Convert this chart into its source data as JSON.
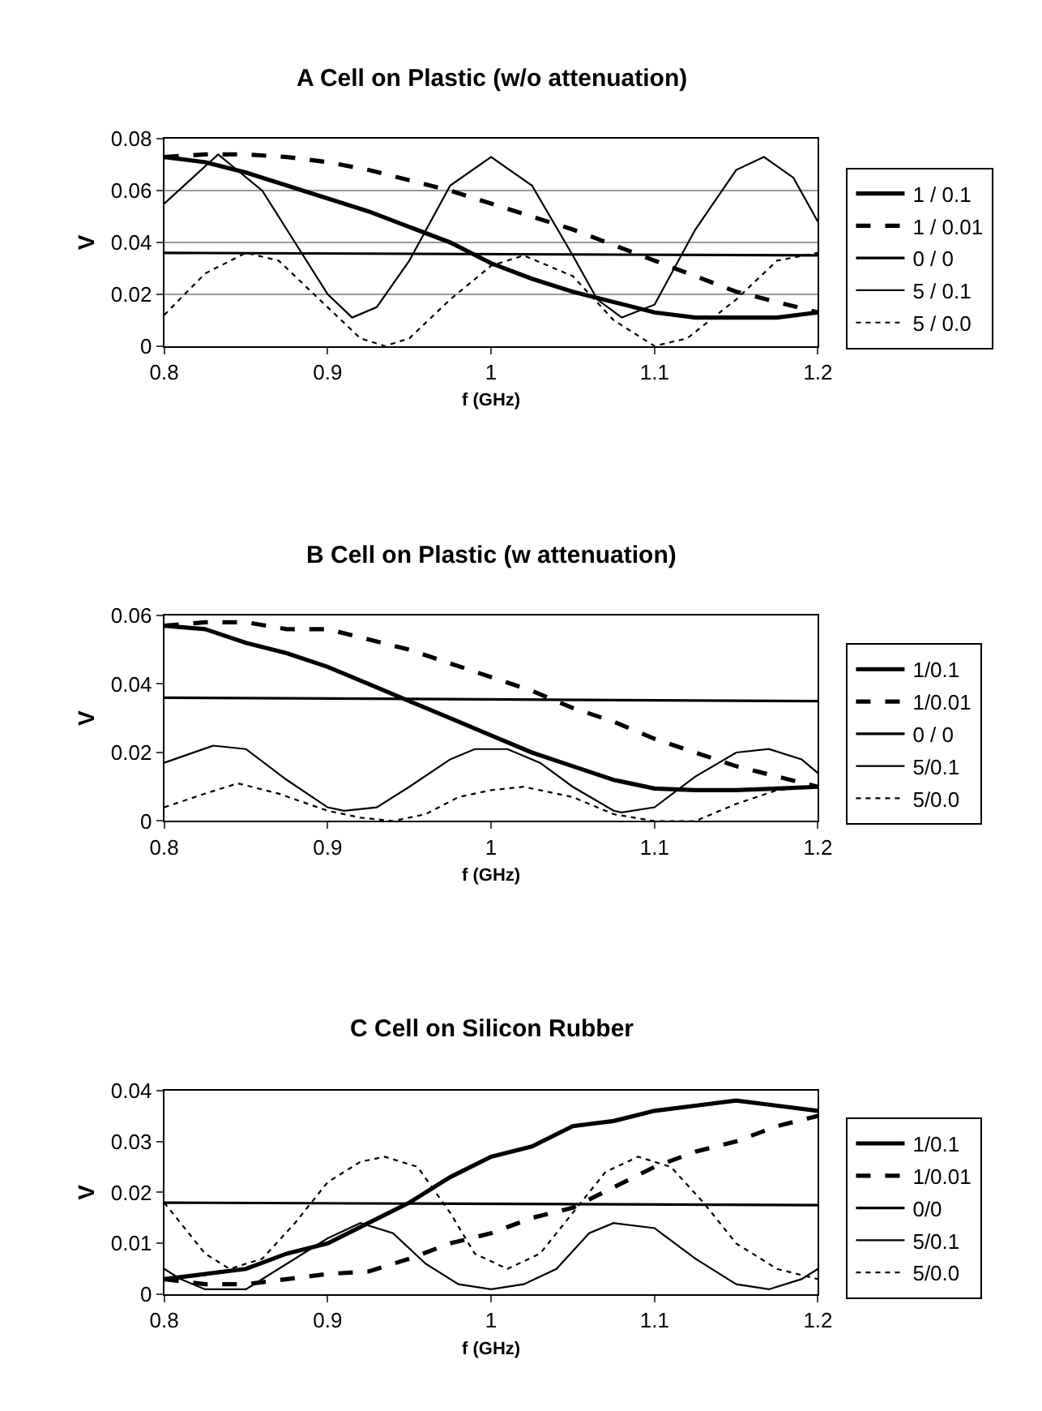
{
  "chart_data": [
    {
      "type": "line",
      "title": "A Cell on Plastic (w/o attenuation)",
      "xlabel": "f (GHz)",
      "ylabel": "V",
      "xlim": [
        0.8,
        1.2
      ],
      "xticks": [
        0.8,
        0.9,
        1,
        1.1,
        1.2
      ],
      "ylim": [
        0,
        0.08
      ],
      "yticks": [
        0,
        0.02,
        0.04,
        0.06,
        0.08
      ],
      "grid": "y",
      "legend": "right",
      "series": [
        {
          "name": "1 / 0.1",
          "color": "#000000",
          "line_style": "solid",
          "x": [
            0.8,
            0.825,
            0.85,
            0.875,
            0.9,
            0.925,
            0.95,
            0.975,
            1.0,
            1.025,
            1.05,
            1.075,
            1.1,
            1.125,
            1.15,
            1.175,
            1.2
          ],
          "values": [
            0.073,
            0.071,
            0.067,
            0.062,
            0.057,
            0.052,
            0.046,
            0.04,
            0.032,
            0.026,
            0.021,
            0.017,
            0.013,
            0.011,
            0.011,
            0.011,
            0.013
          ]
        },
        {
          "name": "1 / 0.01",
          "color": "#000000",
          "line_style": "dashed",
          "x": [
            0.8,
            0.825,
            0.85,
            0.875,
            0.9,
            0.925,
            0.95,
            0.975,
            1.0,
            1.025,
            1.05,
            1.075,
            1.1,
            1.125,
            1.15,
            1.175,
            1.2
          ],
          "values": [
            0.073,
            0.074,
            0.074,
            0.073,
            0.071,
            0.068,
            0.064,
            0.06,
            0.055,
            0.05,
            0.045,
            0.039,
            0.033,
            0.027,
            0.021,
            0.017,
            0.013
          ]
        },
        {
          "name": "0 / 0",
          "color": "#000000",
          "line_style": "solid",
          "x": [
            0.8,
            1.2
          ],
          "values": [
            0.036,
            0.035
          ]
        },
        {
          "name": "5 / 0.1",
          "color": "#000000",
          "line_style": "solid",
          "x": [
            0.8,
            0.833,
            0.86,
            0.875,
            0.9,
            0.915,
            0.93,
            0.95,
            0.975,
            1.0,
            1.025,
            1.05,
            1.065,
            1.08,
            1.1,
            1.125,
            1.15,
            1.167,
            1.185,
            1.2
          ],
          "values": [
            0.055,
            0.074,
            0.06,
            0.045,
            0.02,
            0.011,
            0.015,
            0.033,
            0.062,
            0.073,
            0.062,
            0.035,
            0.018,
            0.011,
            0.016,
            0.045,
            0.068,
            0.073,
            0.065,
            0.048
          ]
        },
        {
          "name": "5 / 0.0",
          "color": "#000000",
          "line_style": "dotted",
          "x": [
            0.8,
            0.825,
            0.85,
            0.87,
            0.9,
            0.92,
            0.935,
            0.95,
            0.975,
            1.0,
            1.02,
            1.05,
            1.075,
            1.1,
            1.12,
            1.15,
            1.175,
            1.2
          ],
          "values": [
            0.012,
            0.028,
            0.036,
            0.033,
            0.015,
            0.003,
            0,
            0.003,
            0.018,
            0.031,
            0.035,
            0.027,
            0.01,
            0,
            0.003,
            0.018,
            0.033,
            0.036
          ]
        }
      ]
    },
    {
      "type": "line",
      "title": "B Cell on Plastic (w attenuation)",
      "xlabel": "f (GHz)",
      "ylabel": "V",
      "xlim": [
        0.8,
        1.2
      ],
      "xticks": [
        0.8,
        0.9,
        1,
        1.1,
        1.2
      ],
      "ylim": [
        0,
        0.06
      ],
      "yticks": [
        0,
        0.02,
        0.04,
        0.06
      ],
      "grid": false,
      "legend": "right",
      "series": [
        {
          "name": "1/0.1",
          "color": "#000000",
          "line_style": "solid",
          "x": [
            0.8,
            0.825,
            0.85,
            0.875,
            0.9,
            0.925,
            0.95,
            0.975,
            1.0,
            1.025,
            1.05,
            1.075,
            1.1,
            1.125,
            1.15,
            1.175,
            1.2
          ],
          "values": [
            0.057,
            0.056,
            0.052,
            0.049,
            0.045,
            0.04,
            0.035,
            0.03,
            0.025,
            0.02,
            0.016,
            0.012,
            0.0095,
            0.009,
            0.009,
            0.0095,
            0.01
          ]
        },
        {
          "name": "1/0.01",
          "color": "#000000",
          "line_style": "dashed",
          "x": [
            0.8,
            0.825,
            0.85,
            0.875,
            0.9,
            0.925,
            0.95,
            0.975,
            1.0,
            1.025,
            1.05,
            1.075,
            1.1,
            1.125,
            1.15,
            1.175,
            1.2
          ],
          "values": [
            0.057,
            0.058,
            0.058,
            0.056,
            0.056,
            0.053,
            0.05,
            0.046,
            0.042,
            0.038,
            0.033,
            0.029,
            0.024,
            0.02,
            0.016,
            0.013,
            0.01
          ]
        },
        {
          "name": "0 / 0",
          "color": "#000000",
          "line_style": "solid",
          "x": [
            0.8,
            1.2
          ],
          "values": [
            0.036,
            0.035
          ]
        },
        {
          "name": "5/0.1",
          "color": "#000000",
          "line_style": "solid",
          "x": [
            0.8,
            0.83,
            0.85,
            0.875,
            0.9,
            0.91,
            0.93,
            0.95,
            0.975,
            0.99,
            1.01,
            1.03,
            1.05,
            1.075,
            1.08,
            1.1,
            1.125,
            1.15,
            1.17,
            1.19,
            1.2
          ],
          "values": [
            0.017,
            0.022,
            0.021,
            0.012,
            0.004,
            0.003,
            0.004,
            0.01,
            0.018,
            0.021,
            0.021,
            0.017,
            0.01,
            0.003,
            0.0025,
            0.004,
            0.013,
            0.02,
            0.021,
            0.018,
            0.014
          ]
        },
        {
          "name": "5/0.0",
          "color": "#000000",
          "line_style": "dotted",
          "x": [
            0.8,
            0.825,
            0.845,
            0.87,
            0.9,
            0.92,
            0.94,
            0.96,
            0.98,
            1.0,
            1.02,
            1.05,
            1.075,
            1.1,
            1.125,
            1.15,
            1.175,
            1.2
          ],
          "values": [
            0.004,
            0.008,
            0.011,
            0.008,
            0.003,
            0.001,
            0,
            0.002,
            0.007,
            0.009,
            0.01,
            0.007,
            0.002,
            0,
            0,
            0.005,
            0.009,
            0.01
          ]
        }
      ]
    },
    {
      "type": "line",
      "title": "C Cell on Silicon Rubber",
      "xlabel": "f (GHz)",
      "ylabel": "V",
      "xlim": [
        0.8,
        1.2
      ],
      "xticks": [
        0.8,
        0.9,
        1,
        1.1,
        1.2
      ],
      "ylim": [
        0,
        0.04
      ],
      "yticks": [
        0,
        0.01,
        0.02,
        0.03,
        0.04
      ],
      "grid": false,
      "legend": "right",
      "series": [
        {
          "name": "1/0.1",
          "color": "#000000",
          "line_style": "solid",
          "x": [
            0.8,
            0.825,
            0.85,
            0.875,
            0.9,
            0.925,
            0.95,
            0.975,
            1.0,
            1.025,
            1.05,
            1.075,
            1.1,
            1.125,
            1.15,
            1.175,
            1.2
          ],
          "values": [
            0.003,
            0.004,
            0.005,
            0.008,
            0.01,
            0.014,
            0.018,
            0.023,
            0.027,
            0.029,
            0.033,
            0.034,
            0.036,
            0.037,
            0.038,
            0.037,
            0.036
          ]
        },
        {
          "name": "1/0.01",
          "color": "#000000",
          "line_style": "dashed",
          "x": [
            0.8,
            0.825,
            0.85,
            0.875,
            0.9,
            0.925,
            0.95,
            0.975,
            1.0,
            1.025,
            1.05,
            1.075,
            1.1,
            1.125,
            1.15,
            1.175,
            1.2
          ],
          "values": [
            0.003,
            0.002,
            0.002,
            0.003,
            0.004,
            0.0045,
            0.007,
            0.01,
            0.012,
            0.015,
            0.017,
            0.021,
            0.025,
            0.028,
            0.03,
            0.033,
            0.035
          ]
        },
        {
          "name": "0/0",
          "color": "#000000",
          "line_style": "solid",
          "x": [
            0.8,
            1.2
          ],
          "values": [
            0.018,
            0.0175
          ]
        },
        {
          "name": "5/0.1",
          "color": "#000000",
          "line_style": "solid",
          "x": [
            0.8,
            0.81,
            0.825,
            0.85,
            0.87,
            0.9,
            0.92,
            0.94,
            0.96,
            0.98,
            1.0,
            1.02,
            1.04,
            1.06,
            1.075,
            1.1,
            1.125,
            1.15,
            1.17,
            1.19,
            1.2
          ],
          "values": [
            0.005,
            0.003,
            0.001,
            0.001,
            0.005,
            0.011,
            0.014,
            0.012,
            0.006,
            0.002,
            0.001,
            0.002,
            0.005,
            0.012,
            0.014,
            0.013,
            0.007,
            0.002,
            0.001,
            0.003,
            0.005
          ]
        },
        {
          "name": "5/0.0",
          "color": "#000000",
          "line_style": "dotted",
          "x": [
            0.8,
            0.825,
            0.84,
            0.86,
            0.88,
            0.9,
            0.92,
            0.935,
            0.955,
            0.975,
            0.99,
            1.01,
            1.03,
            1.05,
            1.07,
            1.09,
            1.11,
            1.13,
            1.15,
            1.175,
            1.2
          ],
          "values": [
            0.018,
            0.008,
            0.005,
            0.007,
            0.014,
            0.022,
            0.026,
            0.027,
            0.025,
            0.016,
            0.008,
            0.005,
            0.008,
            0.016,
            0.024,
            0.027,
            0.025,
            0.018,
            0.01,
            0.005,
            0.003
          ]
        }
      ]
    }
  ]
}
